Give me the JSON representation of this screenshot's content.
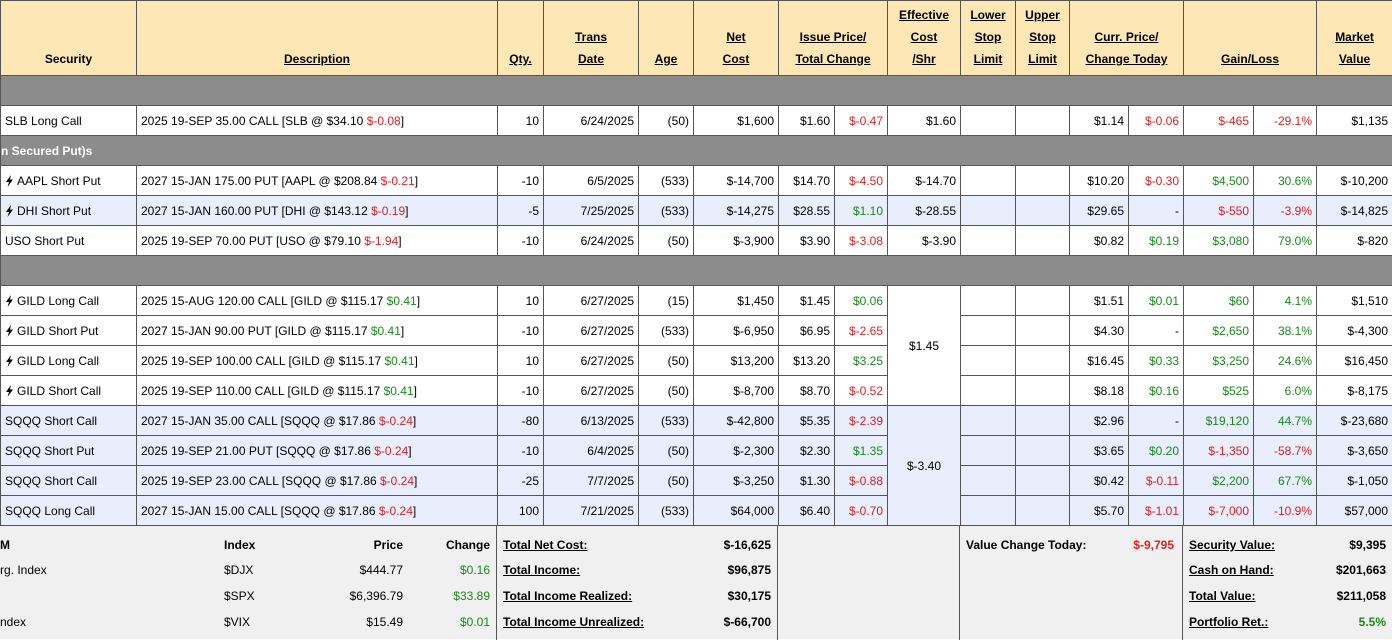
{
  "header": {
    "columns": [
      {
        "lines": [
          "Security"
        ],
        "span": 1
      },
      {
        "lines": [
          "Description"
        ],
        "span": 1
      },
      {
        "lines": [
          "Qty."
        ],
        "span": 1
      },
      {
        "lines": [
          "Trans",
          "Date"
        ],
        "span": 1
      },
      {
        "lines": [
          "Age"
        ],
        "span": 1
      },
      {
        "lines": [
          "Net",
          "Cost"
        ],
        "span": 1
      },
      {
        "lines": [
          "Issue Price/",
          "Total Change"
        ],
        "span": 2
      },
      {
        "lines": [
          "Effective",
          "Cost",
          "/Shr"
        ],
        "span": 1
      },
      {
        "lines": [
          "Lower",
          "Stop",
          "Limit"
        ],
        "span": 1
      },
      {
        "lines": [
          "Upper",
          "Stop",
          "Limit"
        ],
        "span": 1
      },
      {
        "lines": [
          "Curr. Price/",
          "Change Today"
        ],
        "span": 2
      },
      {
        "lines": [
          "Gain/Loss"
        ],
        "span": 2
      },
      {
        "lines": [
          "Market",
          "Value"
        ],
        "span": 1
      }
    ]
  },
  "sections": [
    {
      "rows": [
        {
          "security": "SLB Long Call",
          "description": [
            "2025 19-SEP 35.00 CALL [SLB @ $34.10 ",
            "$-0.08",
            "]"
          ],
          "qty": "10",
          "date": "6/24/2025",
          "age": "(50)",
          "net_cost": "$1,600",
          "issue_price": "$1.60",
          "total_change": "$-0.47",
          "eff_cost": "$1.60",
          "eff_span": 1,
          "curr_price": "$1.14",
          "change_today": "$-0.06",
          "gain": "$-465",
          "gain_pct": "-29.1%",
          "market_value": "$1,135"
        }
      ]
    },
    {
      "title": "n Secured Put)s",
      "rows": [
        {
          "security": "AAPL Short Put",
          "bolt": true,
          "description": [
            "2027 15-JAN 175.00 PUT [AAPL @ $208.84 ",
            "$-0.21",
            "]"
          ],
          "qty": "-10",
          "date": "6/5/2025",
          "age": "(533)",
          "net_cost": "$-14,700",
          "issue_price": "$14.70",
          "total_change": "$-4.50",
          "eff_cost": "$-14.70",
          "eff_span": 1,
          "curr_price": "$10.20",
          "change_today": "$-0.30",
          "gain": "$4,500",
          "gain_pct": "30.6%",
          "market_value": "$-10,200"
        },
        {
          "security": "DHI Short Put",
          "bolt": true,
          "shaded": true,
          "description": [
            "2027 15-JAN 160.00 PUT [DHI @ $143.12 ",
            "$-0.19",
            "]"
          ],
          "qty": "-5",
          "date": "7/25/2025",
          "age": "(533)",
          "net_cost": "$-14,275",
          "issue_price": "$28.55",
          "total_change": "$1.10",
          "eff_cost": "$-28.55",
          "eff_span": 1,
          "curr_price": "$29.65",
          "change_today": "-",
          "gain": "$-550",
          "gain_pct": "-3.9%",
          "market_value": "$-14,825"
        },
        {
          "security": "USO Short Put",
          "description": [
            "2025 19-SEP 70.00 PUT [USO @ $79.10 ",
            "$-1.94",
            "]"
          ],
          "qty": "-10",
          "date": "6/24/2025",
          "age": "(50)",
          "net_cost": "$-3,900",
          "issue_price": "$3.90",
          "total_change": "$-3.08",
          "eff_cost": "$-3.90",
          "eff_span": 1,
          "curr_price": "$0.82",
          "change_today": "$0.19",
          "gain": "$3,080",
          "gain_pct": "79.0%",
          "market_value": "$-820"
        }
      ]
    },
    {
      "rows": [
        {
          "security": "GILD Long Call",
          "bolt": true,
          "description": [
            "2025 15-AUG 120.00 CALL [GILD @ $115.17 ",
            "$0.41",
            "]"
          ],
          "qty": "10",
          "date": "6/27/2025",
          "age": "(15)",
          "net_cost": "$1,450",
          "issue_price": "$1.45",
          "total_change": "$0.06",
          "eff_cost": "$1.45",
          "eff_span": 4,
          "curr_price": "$1.51",
          "change_today": "$0.01",
          "gain": "$60",
          "gain_pct": "4.1%",
          "market_value": "$1,510"
        },
        {
          "security": "GILD Short Put",
          "bolt": true,
          "description": [
            "2027 15-JAN 90.00 PUT [GILD @ $115.17 ",
            "$0.41",
            "]"
          ],
          "qty": "-10",
          "date": "6/27/2025",
          "age": "(533)",
          "net_cost": "$-6,950",
          "issue_price": "$6.95",
          "total_change": "$-2.65",
          "curr_price": "$4.30",
          "change_today": "-",
          "gain": "$2,650",
          "gain_pct": "38.1%",
          "market_value": "$-4,300"
        },
        {
          "security": "GILD Long Call",
          "bolt": true,
          "description": [
            "2025 19-SEP 100.00 CALL [GILD @ $115.17 ",
            "$0.41",
            "]"
          ],
          "qty": "10",
          "date": "6/27/2025",
          "age": "(50)",
          "net_cost": "$13,200",
          "issue_price": "$13.20",
          "total_change": "$3.25",
          "curr_price": "$16.45",
          "change_today": "$0.33",
          "gain": "$3,250",
          "gain_pct": "24.6%",
          "market_value": "$16,450"
        },
        {
          "security": "GILD Short Call",
          "bolt": true,
          "description": [
            "2025 19-SEP 110.00 CALL [GILD @ $115.17 ",
            "$0.41",
            "]"
          ],
          "qty": "-10",
          "date": "6/27/2025",
          "age": "(50)",
          "net_cost": "$-8,700",
          "issue_price": "$8.70",
          "total_change": "$-0.52",
          "curr_price": "$8.18",
          "change_today": "$0.16",
          "gain": "$525",
          "gain_pct": "6.0%",
          "market_value": "$-8,175"
        },
        {
          "security": "SQQQ Short Call",
          "shaded": true,
          "description": [
            "2027 15-JAN 35.00 CALL [SQQQ @ $17.86 ",
            "$-0.24",
            "]"
          ],
          "qty": "-80",
          "date": "6/13/2025",
          "age": "(533)",
          "net_cost": "$-42,800",
          "issue_price": "$5.35",
          "total_change": "$-2.39",
          "eff_cost": "$-3.40",
          "eff_span": 4,
          "curr_price": "$2.96",
          "change_today": "-",
          "gain": "$19,120",
          "gain_pct": "44.7%",
          "market_value": "$-23,680"
        },
        {
          "security": "SQQQ Short Put",
          "shaded": true,
          "description": [
            "2025 19-SEP 21.00 PUT [SQQQ @ $17.86 ",
            "$-0.24",
            "]"
          ],
          "qty": "-10",
          "date": "6/4/2025",
          "age": "(50)",
          "net_cost": "$-2,300",
          "issue_price": "$2.30",
          "total_change": "$1.35",
          "curr_price": "$3.65",
          "change_today": "$0.20",
          "gain": "$-1,350",
          "gain_pct": "-58.7%",
          "market_value": "$-3,650"
        },
        {
          "security": "SQQQ Short Call",
          "shaded": true,
          "description": [
            "2025 19-SEP 23.00 CALL [SQQQ @ $17.86 ",
            "$-0.24",
            "]"
          ],
          "qty": "-25",
          "date": "7/7/2025",
          "age": "(50)",
          "net_cost": "$-3,250",
          "issue_price": "$1.30",
          "total_change": "$-0.88",
          "curr_price": "$0.42",
          "change_today": "$-0.11",
          "gain": "$2,200",
          "gain_pct": "67.7%",
          "market_value": "$-1,050"
        },
        {
          "security": "SQQQ Long Call",
          "shaded": true,
          "description": [
            "2027 15-JAN 15.00 CALL [SQQQ @ $17.86 ",
            "$-0.24",
            "]"
          ],
          "qty": "100",
          "date": "7/21/2025",
          "age": "(533)",
          "net_cost": "$64,000",
          "issue_price": "$6.40",
          "total_change": "$-0.70",
          "curr_price": "$5.70",
          "change_today": "$-1.01",
          "gain": "$-7,000",
          "gain_pct": "-10.9%",
          "market_value": "$57,000"
        }
      ]
    }
  ],
  "footer": {
    "indices": {
      "header": [
        "M",
        "Index",
        "Price",
        "Change"
      ],
      "rows": [
        {
          "name": "rg. Index",
          "index": "$DJX",
          "price": "$444.77",
          "change": "$0.16"
        },
        {
          "index": "$SPX",
          "price": "$6,396.79",
          "change": "$33.89"
        },
        {
          "name": "ndex",
          "index": "$VIX",
          "price": "$15.49",
          "change": "$0.01"
        }
      ]
    },
    "totals": [
      {
        "label": "Total Net Cost:",
        "value": "$-16,625"
      },
      {
        "label": "Total Income:",
        "value": "$96,875"
      },
      {
        "label": "Total Income Realized:",
        "value": "$30,175"
      },
      {
        "label": "Total Income Unrealized:",
        "value": "$-66,700"
      }
    ],
    "value_change": {
      "label": "Value Change Today:",
      "value": "$-9,795"
    },
    "summary": [
      {
        "label": "Security Value:",
        "value": "$9,395"
      },
      {
        "label": "Cash on Hand:",
        "value": "$201,663"
      },
      {
        "label": "Total Value:",
        "value": "$211,058"
      },
      {
        "label": "Portfolio Ret.:",
        "value": "5.5%"
      }
    ]
  }
}
